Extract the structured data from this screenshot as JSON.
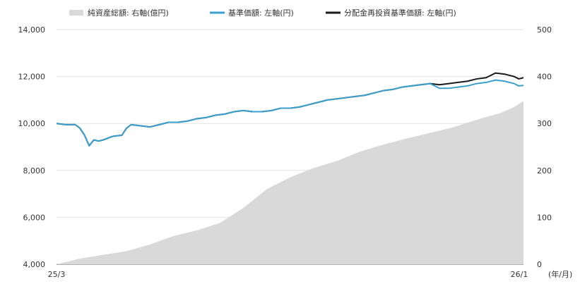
{
  "chart_data": {
    "type": "line",
    "title": "",
    "xlabel": "(年/月)",
    "x_tick_labels": [
      "25/3",
      "26/1"
    ],
    "y_left": {
      "ylim": [
        4000,
        14000
      ],
      "ticks": [
        "4,000",
        "6,000",
        "8,000",
        "10,000",
        "12,000",
        "14,000"
      ]
    },
    "y_right": {
      "ylim": [
        0,
        500
      ],
      "ticks": [
        "0",
        "100",
        "200",
        "300",
        "400",
        "500"
      ]
    },
    "grid": true,
    "legend": [
      {
        "label": "純資産総額: 右軸(億円)",
        "color": "#d9d9d9",
        "kind": "area"
      },
      {
        "label": "基準価額: 左軸(円)",
        "color": "#3aa0d0",
        "kind": "line"
      },
      {
        "label": "分配金再投資基準価額: 左軸(円)",
        "color": "#1a1a1a",
        "kind": "line"
      }
    ],
    "x_range": [
      0,
      100
    ],
    "series": [
      {
        "name": "純資産総額: 右軸(億円)",
        "axis": "right",
        "type": "area",
        "color": "#d9d9d9",
        "x": [
          0,
          5,
          10,
          15,
          20,
          25,
          30,
          35,
          40,
          45,
          50,
          55,
          60,
          65,
          70,
          75,
          80,
          85,
          90,
          95,
          98,
          100
        ],
        "values": [
          0,
          12,
          20,
          28,
          42,
          60,
          72,
          88,
          120,
          160,
          185,
          205,
          220,
          240,
          255,
          268,
          280,
          292,
          308,
          322,
          335,
          348
        ]
      },
      {
        "name": "分配金再投資基準価額: 左軸(円)",
        "axis": "left",
        "type": "line",
        "color": "#1a1a1a",
        "x": [
          0,
          2,
          4,
          5,
          6,
          7,
          8,
          9,
          10,
          12,
          14,
          15,
          16,
          18,
          20,
          22,
          24,
          26,
          28,
          30,
          32,
          34,
          36,
          38,
          40,
          42,
          44,
          46,
          48,
          50,
          52,
          54,
          56,
          58,
          60,
          62,
          64,
          66,
          68,
          70,
          72,
          74,
          76,
          78,
          80,
          82,
          84,
          86,
          88,
          90,
          92,
          94,
          96,
          97,
          98,
          99,
          100
        ],
        "values": [
          10000,
          9950,
          9950,
          9800,
          9500,
          9050,
          9300,
          9250,
          9300,
          9450,
          9500,
          9800,
          9950,
          9900,
          9850,
          9950,
          10050,
          10050,
          10100,
          10200,
          10250,
          10350,
          10400,
          10500,
          10550,
          10500,
          10500,
          10550,
          10650,
          10650,
          10700,
          10800,
          10900,
          11000,
          11050,
          11100,
          11150,
          11200,
          11300,
          11400,
          11450,
          11550,
          11600,
          11650,
          11700,
          11650,
          11700,
          11750,
          11800,
          11900,
          11950,
          12150,
          12100,
          12050,
          12000,
          11900,
          11950
        ]
      },
      {
        "name": "基準価額: 左軸(円)",
        "axis": "left",
        "type": "line",
        "color": "#3aa0d0",
        "x": [
          0,
          2,
          4,
          5,
          6,
          7,
          8,
          9,
          10,
          12,
          14,
          15,
          16,
          18,
          20,
          22,
          24,
          26,
          28,
          30,
          32,
          34,
          36,
          38,
          40,
          42,
          44,
          46,
          48,
          50,
          52,
          54,
          56,
          58,
          60,
          62,
          64,
          66,
          68,
          70,
          72,
          74,
          76,
          78,
          80,
          82,
          84,
          86,
          88,
          90,
          92,
          94,
          96,
          97,
          98,
          99,
          100
        ],
        "values": [
          10000,
          9950,
          9950,
          9800,
          9500,
          9050,
          9300,
          9250,
          9300,
          9450,
          9500,
          9800,
          9950,
          9900,
          9850,
          9950,
          10050,
          10050,
          10100,
          10200,
          10250,
          10350,
          10400,
          10500,
          10550,
          10500,
          10500,
          10550,
          10650,
          10650,
          10700,
          10800,
          10900,
          11000,
          11050,
          11100,
          11150,
          11200,
          11300,
          11400,
          11450,
          11550,
          11600,
          11650,
          11700,
          11500,
          11500,
          11550,
          11600,
          11700,
          11750,
          11850,
          11800,
          11750,
          11700,
          11600,
          11620
        ]
      }
    ]
  }
}
